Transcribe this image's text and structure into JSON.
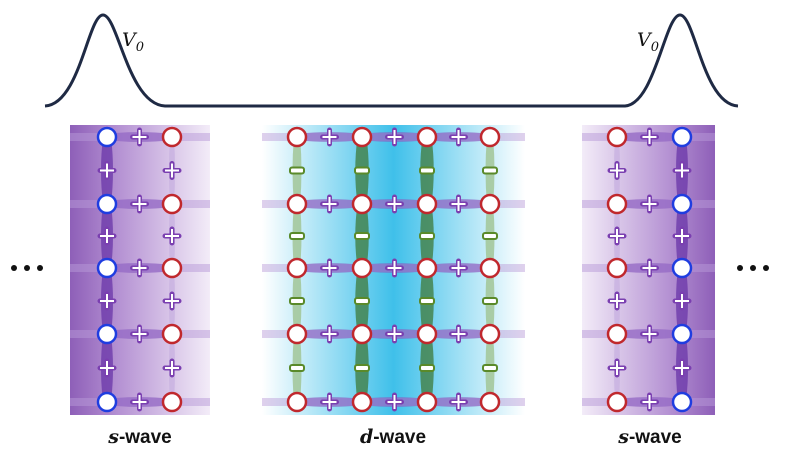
{
  "potential": {
    "left_label": {
      "symbol": "V",
      "subscript": "0"
    },
    "right_label": {
      "symbol": "V",
      "subscript": "0"
    }
  },
  "panels": [
    {
      "variable": "s",
      "suffix": "-wave"
    },
    {
      "variable": "d",
      "suffix": "-wave"
    },
    {
      "variable": "s",
      "suffix": "-wave"
    }
  ]
}
